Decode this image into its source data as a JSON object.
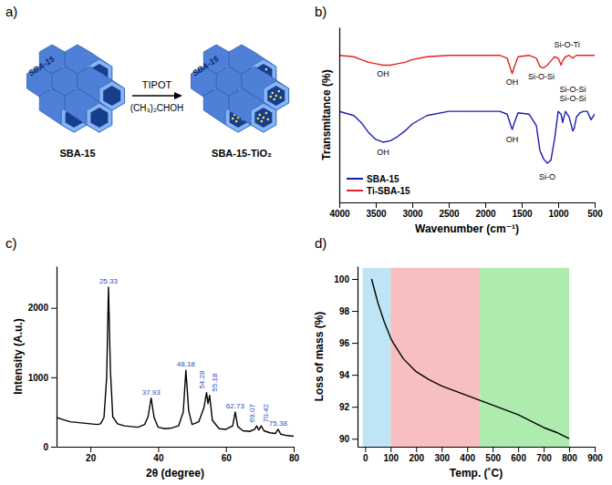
{
  "diagram": {
    "label": "a)",
    "reactant": "SBA-15",
    "product": "SBA-15-TiO₂",
    "reagent": "TIPOT",
    "solvent": "(CH₃)₂CHOH",
    "block_text": "SBA-15"
  },
  "chart_data": [
    {
      "type": "line",
      "title": "b)",
      "x_label": "Wavenumber (cm⁻¹)",
      "y_label": "Transmitance (%)",
      "x": [
        4000,
        3800,
        3700,
        3600,
        3500,
        3400,
        3300,
        3200,
        3100,
        3000,
        2800,
        2500,
        2200,
        2000,
        1800,
        1700,
        1650,
        1630,
        1600,
        1550,
        1400,
        1300,
        1250,
        1200,
        1150,
        1100,
        1050,
        1000,
        960,
        940,
        900,
        850,
        800,
        780,
        750,
        700,
        650,
        600,
        550,
        500
      ],
      "series": [
        {
          "name": "SBA-15",
          "color": "#1c1cb4",
          "values": [
            40,
            37,
            32,
            25,
            20,
            18,
            19,
            22,
            26,
            31,
            37,
            40,
            40,
            40,
            40,
            38,
            30,
            27,
            32,
            39,
            38,
            30,
            12,
            6,
            3,
            5,
            20,
            40,
            38,
            32,
            40,
            36,
            26,
            28,
            36,
            39,
            40,
            40,
            34,
            38
          ]
        },
        {
          "name": "Ti-SBA-15",
          "color": "#e32222",
          "values": [
            80,
            79,
            77,
            75,
            74,
            73,
            73,
            74,
            75,
            77,
            79,
            80,
            80,
            80,
            80,
            78,
            70,
            67,
            72,
            79,
            80,
            78,
            72,
            71,
            73,
            76,
            79,
            78,
            73,
            76,
            79,
            80,
            78,
            79,
            80,
            80,
            80,
            80,
            80,
            80
          ]
        }
      ],
      "xlim": [
        4000,
        500
      ],
      "xticks": [
        4000,
        3500,
        3000,
        2500,
        2000,
        1500,
        1000,
        500
      ],
      "ylim": [
        -25,
        100
      ],
      "yticks": [],
      "tick_labels": "x",
      "legend": "lower left",
      "annotations": [
        {
          "text": "OH",
          "x": 3400,
          "y": 65
        },
        {
          "text": "OH",
          "x": 1630,
          "y": 59
        },
        {
          "text": "Si-O-Si",
          "x": 1230,
          "y": 63
        },
        {
          "text": "Si-O-Ti",
          "x": 880,
          "y": 86
        },
        {
          "text": "OH",
          "x": 3400,
          "y": 9
        },
        {
          "text": "OH",
          "x": 1630,
          "y": 18
        },
        {
          "text": "Si-O",
          "x": 1150,
          "y": -9
        },
        {
          "text": "Si-O-Si",
          "x": 800,
          "y": 47
        },
        {
          "text": "Si-O-Si",
          "x": 800,
          "y": 54
        }
      ]
    },
    {
      "type": "line",
      "title": "c)",
      "x_label": "2θ (degree)",
      "y_label": "Intensity (A.u.)",
      "x": [
        10,
        12,
        14,
        16,
        18,
        20,
        22,
        23,
        24,
        24.8,
        25.33,
        25.9,
        26.6,
        28,
        30,
        32,
        34,
        36,
        37,
        37.93,
        38.8,
        40,
        42,
        44,
        46,
        47.4,
        48.18,
        49,
        50,
        52,
        53.5,
        54.28,
        54.7,
        55.18,
        56,
        58,
        60,
        62,
        62.73,
        63.5,
        65,
        67,
        68.5,
        69.07,
        69.7,
        70.42,
        71.2,
        73,
        74.6,
        75.38,
        76.2,
        78,
        80
      ],
      "values": [
        420,
        390,
        360,
        350,
        340,
        330,
        320,
        330,
        420,
        1000,
        2300,
        1100,
        430,
        330,
        300,
        290,
        280,
        320,
        430,
        700,
        420,
        280,
        260,
        270,
        300,
        500,
        1100,
        520,
        320,
        360,
        560,
        780,
        620,
        740,
        380,
        260,
        250,
        300,
        500,
        290,
        230,
        220,
        250,
        300,
        240,
        300,
        230,
        200,
        190,
        250,
        180,
        160,
        150
      ],
      "color": "#000000",
      "xlim": [
        10,
        80
      ],
      "xticks": [
        20,
        40,
        60,
        80
      ],
      "ylim": [
        0,
        2600
      ],
      "yticks": [
        0,
        1000,
        2000
      ],
      "annotations": [
        {
          "text": "25.33",
          "x": 25.33,
          "y": 2300
        },
        {
          "text": "37.93",
          "x": 37.93,
          "y": 700
        },
        {
          "text": "48.18",
          "x": 48.18,
          "y": 1100
        },
        {
          "text": "54.28",
          "x": 54.28,
          "y": 780
        },
        {
          "text": "55.18",
          "x": 55.18,
          "y": 740
        },
        {
          "text": "62.73",
          "x": 62.73,
          "y": 500
        },
        {
          "text": "69.07",
          "x": 69.07,
          "y": 300
        },
        {
          "text": "70.42",
          "x": 70.42,
          "y": 300
        },
        {
          "text": "75.38",
          "x": 75.38,
          "y": 250
        }
      ]
    },
    {
      "type": "line",
      "title": "d)",
      "x_label": "Temp. (˚C)",
      "y_label": "Loss of mass (%)",
      "x": [
        25,
        50,
        75,
        100,
        110,
        150,
        200,
        250,
        300,
        350,
        400,
        450,
        500,
        550,
        600,
        650,
        700,
        750,
        800
      ],
      "values": [
        100,
        98.5,
        97.3,
        96.3,
        96.0,
        95.0,
        94.2,
        93.7,
        93.3,
        93.0,
        92.7,
        92.4,
        92.1,
        91.8,
        91.5,
        91.1,
        90.7,
        90.4,
        90.0
      ],
      "color": "#000000",
      "xlim": [
        -30,
        900
      ],
      "xticks": [
        0,
        100,
        200,
        300,
        400,
        500,
        600,
        700,
        800,
        900
      ],
      "ylim": [
        89.5,
        100.8
      ],
      "yticks": [
        90,
        92,
        94,
        96,
        98,
        100
      ],
      "regions": [
        {
          "x": [
            -10,
            100
          ],
          "y": [
            89.5,
            100.7
          ],
          "color": "#a8dcf2"
        },
        {
          "x": [
            100,
            450
          ],
          "y": [
            89.5,
            100.7
          ],
          "color": "#f4a9a9"
        },
        {
          "x": [
            450,
            800
          ],
          "y": [
            89.5,
            100.7
          ],
          "color": "#93e693"
        }
      ]
    }
  ]
}
